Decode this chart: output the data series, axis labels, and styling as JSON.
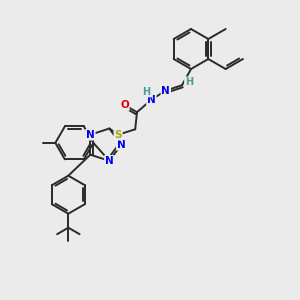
{
  "background_color": "#ebebeb",
  "bond_color": "#2a2a2a",
  "atom_colors": {
    "N": "#0000ee",
    "O": "#dd0000",
    "S": "#aaaa00",
    "H": "#4a9a9a",
    "C": "#2a2a2a"
  },
  "figsize": [
    3.0,
    3.0
  ],
  "dpi": 100
}
